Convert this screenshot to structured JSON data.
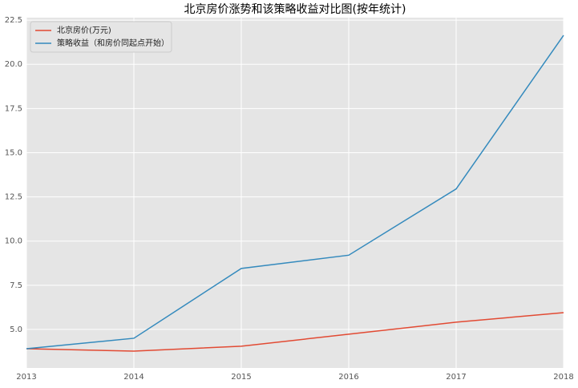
{
  "chart_data": {
    "type": "line",
    "title": "北京房价涨势和该策略收益对比图(按年统计)",
    "x": [
      2013,
      2014,
      2015,
      2016,
      2017,
      2018
    ],
    "series": [
      {
        "name": "北京房价(万元)",
        "color": "#e24a33",
        "values": [
          3.91,
          3.77,
          4.05,
          4.73,
          5.41,
          5.95
        ]
      },
      {
        "name": "策略收益（和房价同起点开始）",
        "color": "#348abd",
        "values": [
          3.91,
          4.5,
          8.45,
          9.2,
          12.95,
          21.64
        ]
      }
    ],
    "xlim": [
      2013,
      2018
    ],
    "xticks": [
      2013,
      2014,
      2015,
      2016,
      2017,
      2018
    ],
    "ylim": [
      2.82,
      22.64
    ],
    "yticks": [
      {
        "value": 5,
        "label": "5.0"
      },
      7.5,
      {
        "value": 10,
        "label": "10.0"
      },
      12.5,
      {
        "value": 15,
        "label": "15.0"
      },
      17.5,
      {
        "value": 20,
        "label": "20.0"
      },
      22.5
    ],
    "grid": true,
    "legend": "upper-left"
  }
}
